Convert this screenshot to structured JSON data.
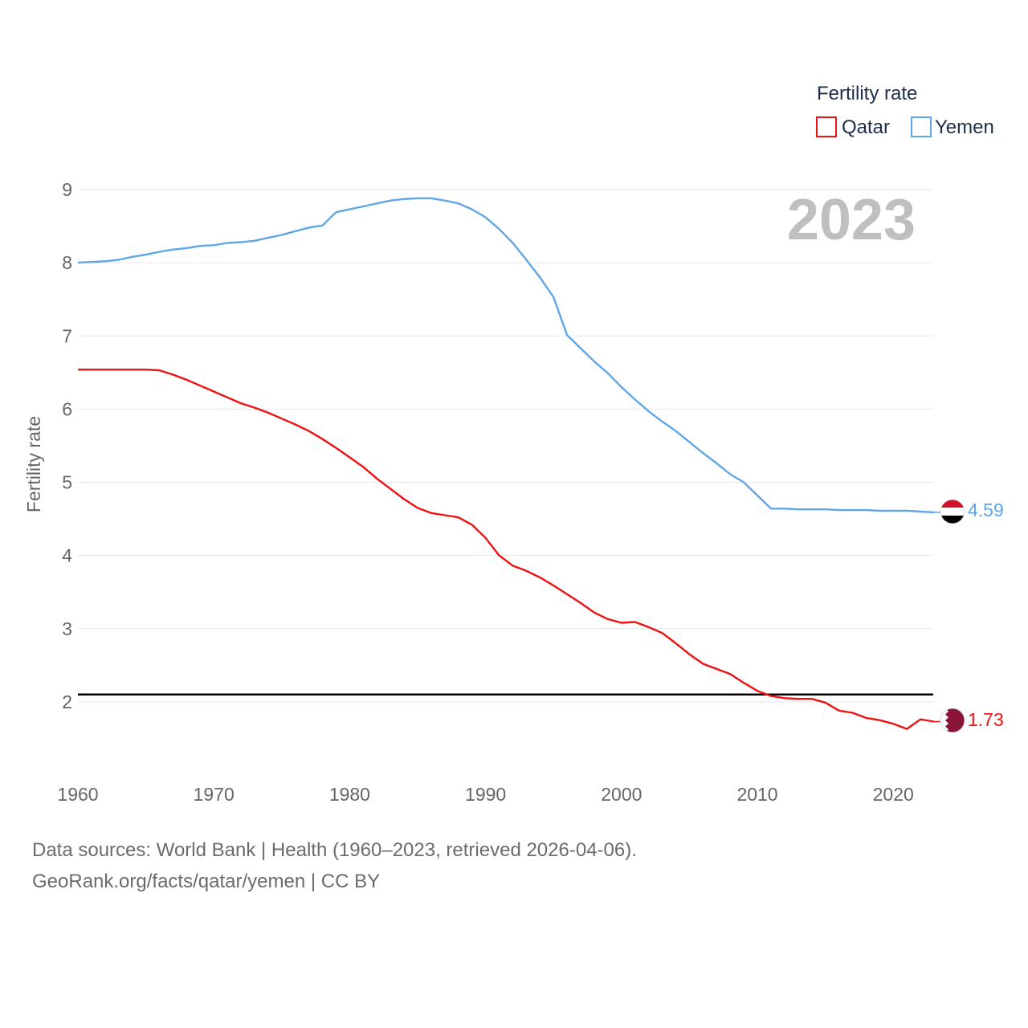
{
  "chart_data": {
    "type": "line",
    "title": "2023",
    "ylabel": "Fertility rate",
    "xlabel": "",
    "xlim": [
      1960,
      2023
    ],
    "ylim": [
      1,
      9
    ],
    "yticks": [
      2,
      3,
      4,
      5,
      6,
      7,
      8,
      9
    ],
    "xticks": [
      1960,
      1970,
      1980,
      1990,
      2000,
      2010,
      2020
    ],
    "grid": true,
    "legend": {
      "title": "Fertility rate",
      "position": "top-right"
    },
    "reference_line": 2.1,
    "series": [
      {
        "name": "Qatar",
        "color": "#ee1111",
        "end_label": "1.73",
        "flag": "qatar-flag",
        "x": [
          1960,
          1961,
          1962,
          1963,
          1964,
          1965,
          1966,
          1967,
          1968,
          1969,
          1970,
          1971,
          1972,
          1973,
          1974,
          1975,
          1976,
          1977,
          1978,
          1979,
          1980,
          1981,
          1982,
          1983,
          1984,
          1985,
          1986,
          1987,
          1988,
          1989,
          1990,
          1991,
          1992,
          1993,
          1994,
          1995,
          1996,
          1997,
          1998,
          1999,
          2000,
          2001,
          2002,
          2003,
          2004,
          2005,
          2006,
          2007,
          2008,
          2009,
          2010,
          2011,
          2012,
          2013,
          2014,
          2015,
          2016,
          2017,
          2018,
          2019,
          2020,
          2021,
          2022,
          2023
        ],
        "values": [
          6.54,
          6.54,
          6.54,
          6.54,
          6.54,
          6.54,
          6.53,
          6.47,
          6.4,
          6.32,
          6.24,
          6.16,
          6.08,
          6.02,
          5.95,
          5.87,
          5.79,
          5.7,
          5.59,
          5.47,
          5.34,
          5.21,
          5.05,
          4.91,
          4.77,
          4.65,
          4.58,
          4.55,
          4.52,
          4.42,
          4.24,
          4.0,
          3.86,
          3.79,
          3.7,
          3.59,
          3.47,
          3.35,
          3.22,
          3.13,
          3.08,
          3.09,
          3.02,
          2.94,
          2.8,
          2.65,
          2.52,
          2.45,
          2.38,
          2.26,
          2.15,
          2.08,
          2.05,
          2.04,
          2.04,
          1.99,
          1.88,
          1.85,
          1.78,
          1.75,
          1.7,
          1.63,
          1.76,
          1.73
        ]
      },
      {
        "name": "Yemen",
        "color": "#5ea6e6",
        "end_label": "4.59",
        "flag": "yemen-flag",
        "x": [
          1960,
          1961,
          1962,
          1963,
          1964,
          1965,
          1966,
          1967,
          1968,
          1969,
          1970,
          1971,
          1972,
          1973,
          1974,
          1975,
          1976,
          1977,
          1978,
          1979,
          1980,
          1981,
          1982,
          1983,
          1984,
          1985,
          1986,
          1987,
          1988,
          1989,
          1990,
          1991,
          1992,
          1993,
          1994,
          1995,
          1996,
          1997,
          1998,
          1999,
          2000,
          2001,
          2002,
          2003,
          2004,
          2005,
          2006,
          2007,
          2008,
          2009,
          2010,
          2011,
          2012,
          2013,
          2014,
          2015,
          2016,
          2017,
          2018,
          2019,
          2020,
          2021,
          2022,
          2023
        ],
        "values": [
          8.0,
          8.01,
          8.02,
          8.04,
          8.08,
          8.11,
          8.15,
          8.18,
          8.2,
          8.23,
          8.24,
          8.27,
          8.28,
          8.3,
          8.34,
          8.38,
          8.43,
          8.48,
          8.51,
          8.69,
          8.73,
          8.77,
          8.81,
          8.85,
          8.87,
          8.88,
          8.88,
          8.85,
          8.81,
          8.73,
          8.62,
          8.46,
          8.27,
          8.04,
          7.8,
          7.53,
          7.01,
          6.83,
          6.65,
          6.49,
          6.3,
          6.13,
          5.97,
          5.83,
          5.7,
          5.55,
          5.4,
          5.26,
          5.11,
          5.0,
          4.82,
          4.64,
          4.64,
          4.63,
          4.63,
          4.63,
          4.62,
          4.62,
          4.62,
          4.61,
          4.61,
          4.61,
          4.6,
          4.59
        ]
      }
    ]
  },
  "footer": {
    "line1": "Data sources: World Bank | Health (1960–2023, retrieved 2026-04-06).",
    "line2": "GeoRank.org/facts/qatar/yemen | CC BY"
  }
}
